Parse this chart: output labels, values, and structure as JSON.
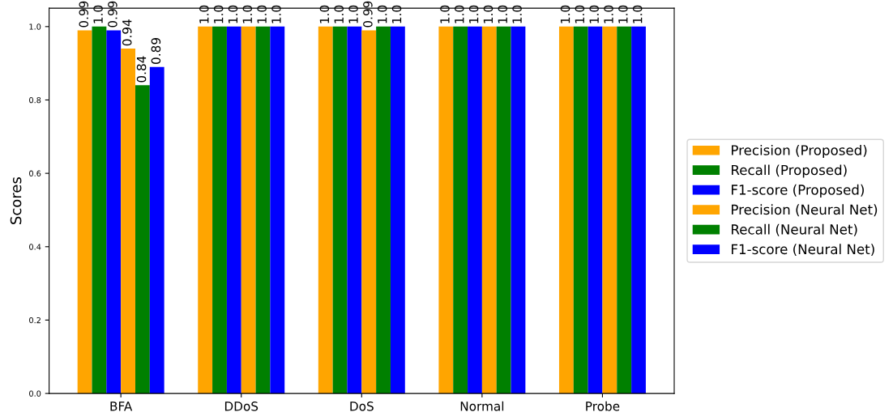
{
  "chart_data": {
    "type": "bar",
    "ylabel": "Scores",
    "categories": [
      "BFA",
      "DDoS",
      "DoS",
      "Normal",
      "Probe"
    ],
    "series": [
      {
        "name": "Precision (Proposed)",
        "color": "#ffa500",
        "values": [
          0.99,
          1.0,
          1.0,
          1.0,
          1.0
        ],
        "value_labels": [
          "0.99",
          "1.0",
          "1.0",
          "1.0",
          "1.0"
        ]
      },
      {
        "name": "Recall (Proposed)",
        "color": "#008000",
        "values": [
          1.0,
          1.0,
          1.0,
          1.0,
          1.0
        ],
        "value_labels": [
          "1.0",
          "1.0",
          "1.0",
          "1.0",
          "1.0"
        ]
      },
      {
        "name": "F1-score (Proposed)",
        "color": "#0000ff",
        "values": [
          0.99,
          1.0,
          1.0,
          1.0,
          1.0
        ],
        "value_labels": [
          "0.99",
          "1.0",
          "1.0",
          "1.0",
          "1.0"
        ]
      },
      {
        "name": "Precision (Neural Net)",
        "color": "#ffa500",
        "values": [
          0.94,
          1.0,
          0.99,
          1.0,
          1.0
        ],
        "value_labels": [
          "0.94",
          "1.0",
          "0.99",
          "1.0",
          "1.0"
        ]
      },
      {
        "name": "Recall (Neural Net)",
        "color": "#008000",
        "values": [
          0.84,
          1.0,
          1.0,
          1.0,
          1.0
        ],
        "value_labels": [
          "0.84",
          "1.0",
          "1.0",
          "1.0",
          "1.0"
        ]
      },
      {
        "name": "F1-score (Neural Net)",
        "color": "#0000ff",
        "values": [
          0.89,
          1.0,
          1.0,
          1.0,
          1.0
        ],
        "value_labels": [
          "0.89",
          "1.0",
          "1.0",
          "1.0",
          "1.0"
        ]
      }
    ],
    "ylim": [
      0,
      1.05
    ],
    "yticks": [
      {
        "value": 0,
        "label": "0.0"
      },
      {
        "value": 0.2,
        "label": "0.2"
      },
      {
        "value": 0.4,
        "label": "0.4"
      },
      {
        "value": 0.6,
        "label": "0.6"
      },
      {
        "value": 0.8,
        "label": "0.8"
      },
      {
        "value": 1.0,
        "label": "1.0"
      }
    ],
    "grid": false,
    "legend": "right"
  }
}
